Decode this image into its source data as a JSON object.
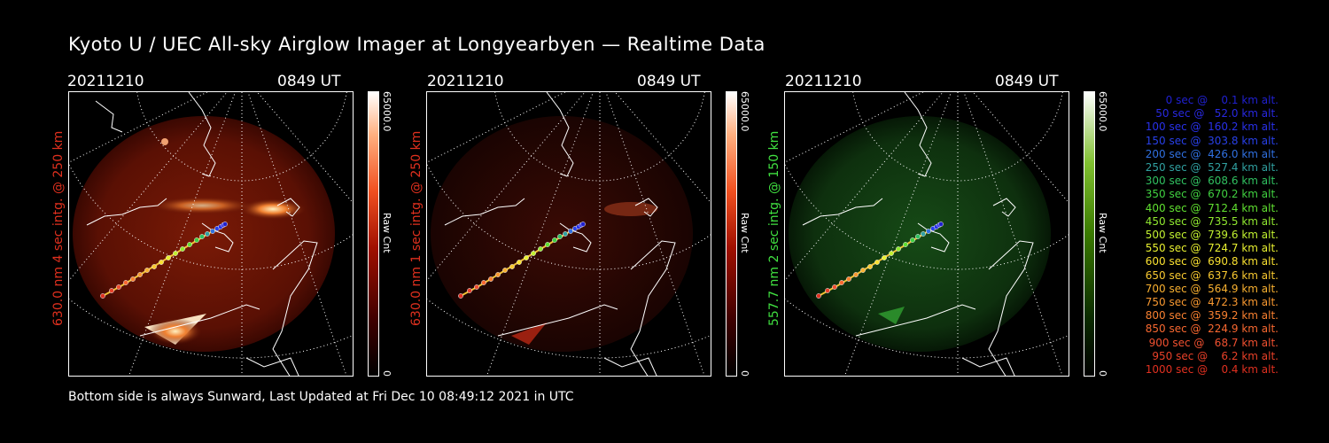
{
  "title": "Kyoto U / UEC All-sky Airglow Imager at Longyearbyen — Realtime Data",
  "footer": "Bottom side is always Sunward, Last Updated at Fri Dec 10 08:49:12 2021 in UTC",
  "colors": {
    "red": "#e0301e",
    "green": "#40e040"
  },
  "panels": [
    {
      "date": "20211210",
      "time": "0849 UT",
      "side_label": "630.0 nm  4 sec intg. @ 250 km",
      "cb_max": "65000.0",
      "cb_min": "0",
      "cb_unit": "Raw Cnt",
      "color": "red"
    },
    {
      "date": "20211210",
      "time": "0849 UT",
      "side_label": "630.0 nm  1 sec intg. @ 250 km",
      "cb_max": "65000.0",
      "cb_min": "0",
      "cb_unit": "Raw Cnt",
      "color": "red"
    },
    {
      "date": "20211210",
      "time": "0849 UT",
      "side_label": "557.7 nm  2 sec intg. @ 150 km",
      "cb_max": "65000.0",
      "cb_min": "0",
      "cb_unit": "Raw Cnt",
      "color": "green"
    }
  ],
  "legend": [
    {
      "text": "   0 sec @    0.1 km alt.",
      "color": "#2020d0"
    },
    {
      "text": "  50 sec @   52.0 km alt.",
      "color": "#2828e0"
    },
    {
      "text": " 100 sec @  160.2 km alt.",
      "color": "#2830e8"
    },
    {
      "text": " 150 sec @  303.8 km alt.",
      "color": "#2840e8"
    },
    {
      "text": " 200 sec @  426.0 km alt.",
      "color": "#3070e0"
    },
    {
      "text": " 250 sec @  527.4 km alt.",
      "color": "#30a0a0"
    },
    {
      "text": " 300 sec @  608.6 km alt.",
      "color": "#30c060"
    },
    {
      "text": " 350 sec @  670.2 km alt.",
      "color": "#40d040"
    },
    {
      "text": " 400 sec @  712.4 km alt.",
      "color": "#60e030"
    },
    {
      "text": " 450 sec @  735.5 km alt.",
      "color": "#90e830"
    },
    {
      "text": " 500 sec @  739.6 km alt.",
      "color": "#c0f030"
    },
    {
      "text": " 550 sec @  724.7 km alt.",
      "color": "#e8f030"
    },
    {
      "text": " 600 sec @  690.8 km alt.",
      "color": "#f8e030"
    },
    {
      "text": " 650 sec @  637.6 km alt.",
      "color": "#f8c830"
    },
    {
      "text": " 700 sec @  564.9 km alt.",
      "color": "#f8b030"
    },
    {
      "text": " 750 sec @  472.3 km alt.",
      "color": "#f89830"
    },
    {
      "text": " 800 sec @  359.2 km alt.",
      "color": "#f88030"
    },
    {
      "text": " 850 sec @  224.9 km alt.",
      "color": "#f86830"
    },
    {
      "text": " 900 sec @   68.7 km alt.",
      "color": "#f05030"
    },
    {
      "text": " 950 sec @    6.2 km alt.",
      "color": "#e84028"
    },
    {
      "text": "1000 sec @    0.4 km alt.",
      "color": "#e03020"
    }
  ]
}
